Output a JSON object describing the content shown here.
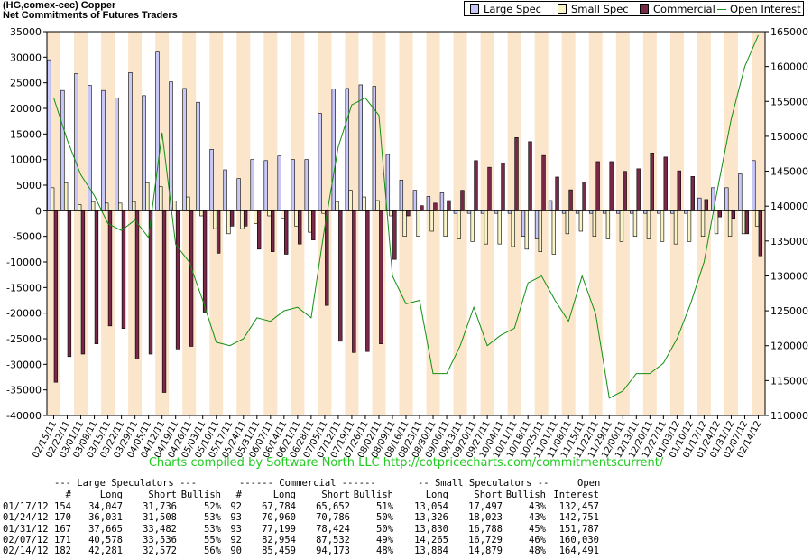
{
  "header": {
    "symbol_line": "(HG,comex-cec) Copper",
    "subtitle": "Net Commitments of Futures Traders"
  },
  "legend": [
    {
      "label": "Large Spec",
      "color": "#c8c8f8"
    },
    {
      "label": "Small Spec",
      "color": "#f8f4c8"
    },
    {
      "label": "Commercial",
      "color": "#7a2848"
    },
    {
      "label": "Open Interest",
      "color": "#129012"
    }
  ],
  "credit": "Charts compiled by Software North LLC  http://cotpricecharts.com/commitmentscurrent/",
  "chart_data": {
    "type": "bar",
    "categories": [
      "02/15/11",
      "02/22/11",
      "03/01/11",
      "03/08/11",
      "03/15/11",
      "03/22/11",
      "03/29/11",
      "04/05/11",
      "04/12/11",
      "04/19/11",
      "04/26/11",
      "05/03/11",
      "05/10/11",
      "05/17/11",
      "05/24/11",
      "05/31/11",
      "06/07/11",
      "06/14/11",
      "06/21/11",
      "06/28/11",
      "07/05/11",
      "07/12/11",
      "07/19/11",
      "07/26/11",
      "08/02/11",
      "08/09/11",
      "08/16/11",
      "08/23/11",
      "08/30/11",
      "09/06/11",
      "09/13/11",
      "09/20/11",
      "09/27/11",
      "10/04/11",
      "10/11/11",
      "10/18/11",
      "10/25/11",
      "11/01/11",
      "11/08/11",
      "11/15/11",
      "11/22/11",
      "11/29/11",
      "12/06/11",
      "12/13/11",
      "12/20/11",
      "12/27/11",
      "01/03/12",
      "01/10/12",
      "01/17/12",
      "01/24/12",
      "01/31/12",
      "02/07/12",
      "02/14/12"
    ],
    "series": [
      {
        "name": "Large Spec",
        "color": "#c8c8f8",
        "values": [
          29500,
          23500,
          26800,
          24500,
          23500,
          22000,
          27000,
          22500,
          31000,
          25200,
          23900,
          21200,
          12000,
          8000,
          6300,
          10000,
          9800,
          10700,
          10000,
          10000,
          19000,
          23800,
          23900,
          24600,
          24300,
          11000,
          6000,
          4000,
          2800,
          3500,
          -500,
          -500,
          -500,
          -500,
          -500,
          -5000,
          -5500,
          2000,
          -500,
          -500,
          -500,
          -500,
          -500,
          -500,
          -500,
          -500,
          -500,
          -500,
          2500,
          4500,
          4500,
          7200,
          9800
        ]
      },
      {
        "name": "Small Spec",
        "color": "#f8f4c8",
        "values": [
          4500,
          5500,
          1200,
          1800,
          1500,
          1500,
          1800,
          5500,
          4700,
          1900,
          2700,
          -1000,
          -3500,
          -4500,
          -3500,
          -2500,
          -1000,
          -1500,
          -3000,
          -4200,
          -500,
          1800,
          4000,
          2700,
          2000,
          -1000,
          -5000,
          -5000,
          -4000,
          -5000,
          -5500,
          -6000,
          -6500,
          -6500,
          -7000,
          -7500,
          -8000,
          -8500,
          -4500,
          -4000,
          -5000,
          -5500,
          -6000,
          -5000,
          -5500,
          -6000,
          -6500,
          -6000,
          -5000,
          -4500,
          -5000,
          -4500,
          -3000
        ]
      },
      {
        "name": "Commercial",
        "color": "#7a2848",
        "values": [
          -33500,
          -28500,
          -28000,
          -26000,
          -22500,
          -23000,
          -29000,
          -28000,
          -35500,
          -27000,
          -26500,
          -19800,
          -8300,
          -3000,
          -3000,
          -7500,
          -8000,
          -8500,
          -6500,
          -5700,
          -18500,
          -25500,
          -27700,
          -27500,
          -26000,
          -9500,
          -1000,
          1000,
          1500,
          2000,
          4000,
          9800,
          8500,
          9300,
          14300,
          13500,
          10800,
          6600,
          4100,
          5600,
          9600,
          9600,
          7700,
          8200,
          11300,
          10500,
          7800,
          6700,
          2200,
          -1200,
          -1500,
          -4500,
          -8800
        ]
      },
      {
        "name": "Open Interest",
        "color": "#129012",
        "values": [
          155500,
          149500,
          144500,
          141500,
          137500,
          136500,
          138000,
          135500,
          150500,
          134500,
          132000,
          126500,
          120500,
          120000,
          121000,
          124000,
          123500,
          125000,
          125500,
          124000,
          137000,
          148500,
          154500,
          155500,
          153000,
          130000,
          126000,
          126500,
          116000,
          116000,
          120000,
          125500,
          120000,
          121500,
          122500,
          129000,
          130000,
          126500,
          123500,
          130000,
          124500,
          112500,
          113500,
          116000,
          116000,
          117500,
          121000,
          126000,
          132000,
          142500,
          152500,
          160000,
          164500
        ]
      }
    ],
    "ylim_left": [
      -40000,
      35000
    ],
    "yticks_left": [
      35000,
      30000,
      25000,
      20000,
      15000,
      10000,
      5000,
      0,
      -5000,
      -10000,
      -15000,
      -20000,
      -25000,
      -30000,
      -35000,
      -40000
    ],
    "ylim_right": [
      110000,
      165000
    ],
    "yticks_right": [
      165000,
      160000,
      155000,
      150000,
      145000,
      140000,
      135000,
      130000,
      125000,
      120000,
      115000,
      110000
    ],
    "grid": false
  },
  "table": {
    "group_headers": [
      "--- Large Speculators ---",
      "------ Commercial ------",
      "-- Small Speculators --",
      "Open"
    ],
    "col_headers": [
      "#",
      "Long",
      "Short",
      "Bullish",
      "#",
      "Long",
      "Short",
      "Bullish",
      "Long",
      "Short",
      "Bullish",
      "Interest"
    ],
    "rows": [
      [
        "01/17/12",
        "154",
        "34,047",
        "31,736",
        "52%",
        "92",
        "67,784",
        "65,652",
        "51%",
        "13,054",
        "17,497",
        "43%",
        "132,457"
      ],
      [
        "01/24/12",
        "170",
        "36,031",
        "31,508",
        "53%",
        "93",
        "70,960",
        "70,786",
        "50%",
        "13,326",
        "18,023",
        "43%",
        "142,751"
      ],
      [
        "01/31/12",
        "167",
        "37,665",
        "33,482",
        "53%",
        "93",
        "77,199",
        "78,424",
        "50%",
        "13,830",
        "16,788",
        "45%",
        "151,787"
      ],
      [
        "02/07/12",
        "171",
        "40,578",
        "33,536",
        "55%",
        "92",
        "82,954",
        "87,532",
        "49%",
        "14,265",
        "16,729",
        "46%",
        "160,030"
      ],
      [
        "02/14/12",
        "182",
        "42,281",
        "32,572",
        "56%",
        "90",
        "85,459",
        "94,173",
        "48%",
        "13,884",
        "14,879",
        "48%",
        "164,491"
      ]
    ]
  }
}
